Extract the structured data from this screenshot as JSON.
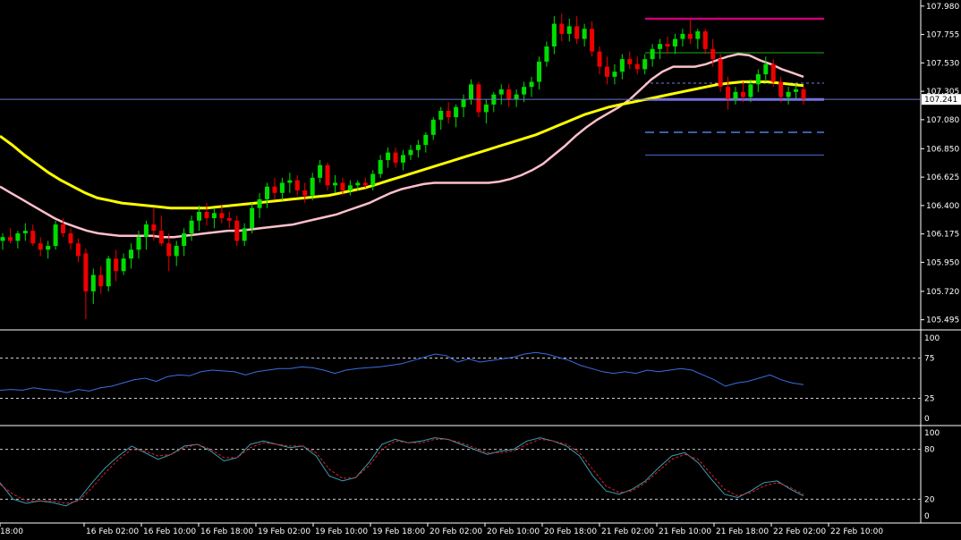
{
  "chart_data": [
    {
      "type": "candlestick",
      "panel": "price",
      "y_ticks": [
        "107.980",
        "107.755",
        "107.530",
        "107.305",
        "107.080",
        "106.850",
        "106.625",
        "106.400",
        "106.175",
        "105.950",
        "105.720",
        "105.495"
      ],
      "ylim": [
        105.45,
        108.0
      ],
      "current_price_label": "107.241",
      "current_price": 107.241,
      "candles": [
        [
          106.12,
          106.18,
          106.05,
          106.15
        ],
        [
          106.15,
          106.22,
          106.1,
          106.12
        ],
        [
          106.12,
          106.2,
          106.06,
          106.18
        ],
        [
          106.18,
          106.26,
          106.12,
          106.2
        ],
        [
          106.2,
          106.25,
          106.08,
          106.1
        ],
        [
          106.1,
          106.15,
          106.0,
          106.05
        ],
        [
          106.05,
          106.12,
          105.98,
          106.08
        ],
        [
          106.08,
          106.28,
          106.05,
          106.25
        ],
        [
          106.25,
          106.3,
          106.15,
          106.18
        ],
        [
          106.18,
          106.22,
          106.05,
          106.1
        ],
        [
          106.1,
          106.14,
          105.95,
          106.0
        ],
        [
          106.02,
          106.06,
          105.5,
          105.72
        ],
        [
          105.72,
          105.9,
          105.62,
          105.85
        ],
        [
          105.85,
          105.92,
          105.7,
          105.76
        ],
        [
          105.76,
          106.0,
          105.72,
          105.98
        ],
        [
          105.98,
          106.05,
          105.8,
          105.88
        ],
        [
          105.88,
          106.02,
          105.85,
          105.98
        ],
        [
          105.98,
          106.1,
          105.9,
          106.05
        ],
        [
          106.05,
          106.2,
          105.98,
          106.15
        ],
        [
          106.15,
          106.28,
          106.05,
          106.25
        ],
        [
          106.25,
          106.38,
          106.12,
          106.2
        ],
        [
          106.2,
          106.32,
          106.08,
          106.1
        ],
        [
          106.1,
          106.18,
          105.88,
          106.0
        ],
        [
          106.0,
          106.12,
          105.92,
          106.08
        ],
        [
          106.08,
          106.22,
          106.0,
          106.18
        ],
        [
          106.18,
          106.32,
          106.12,
          106.28
        ],
        [
          106.28,
          106.4,
          106.2,
          106.35
        ],
        [
          106.35,
          106.42,
          106.24,
          106.3
        ],
        [
          106.3,
          106.38,
          106.22,
          106.34
        ],
        [
          106.34,
          106.4,
          106.26,
          106.3
        ],
        [
          106.3,
          106.35,
          106.22,
          106.28
        ],
        [
          106.28,
          106.32,
          106.08,
          106.12
        ],
        [
          106.12,
          106.26,
          106.08,
          106.22
        ],
        [
          106.22,
          106.42,
          106.18,
          106.38
        ],
        [
          106.38,
          106.5,
          106.3,
          106.45
        ],
        [
          106.45,
          106.58,
          106.38,
          106.55
        ],
        [
          106.55,
          106.62,
          106.45,
          106.5
        ],
        [
          106.5,
          106.62,
          106.44,
          106.58
        ],
        [
          106.58,
          106.66,
          106.5,
          106.6
        ],
        [
          106.6,
          106.64,
          106.48,
          106.52
        ],
        [
          106.52,
          106.58,
          106.42,
          106.48
        ],
        [
          106.48,
          106.66,
          106.44,
          106.62
        ],
        [
          106.62,
          106.76,
          106.58,
          106.72
        ],
        [
          106.72,
          106.74,
          106.52,
          106.56
        ],
        [
          106.56,
          106.64,
          106.5,
          106.58
        ],
        [
          106.58,
          106.62,
          106.48,
          106.52
        ],
        [
          106.52,
          106.6,
          106.48,
          106.56
        ],
        [
          106.56,
          106.6,
          106.52,
          106.58
        ],
        [
          106.58,
          106.62,
          106.54,
          106.56
        ],
        [
          106.56,
          106.68,
          106.52,
          106.65
        ],
        [
          106.65,
          106.8,
          106.62,
          106.76
        ],
        [
          106.76,
          106.86,
          106.7,
          106.82
        ],
        [
          106.82,
          106.86,
          106.7,
          106.74
        ],
        [
          106.74,
          106.84,
          106.68,
          106.8
        ],
        [
          106.8,
          106.88,
          106.76,
          106.84
        ],
        [
          106.84,
          106.92,
          106.78,
          106.88
        ],
        [
          106.88,
          106.98,
          106.82,
          106.96
        ],
        [
          106.96,
          107.1,
          106.92,
          107.08
        ],
        [
          107.08,
          107.18,
          107.0,
          107.15
        ],
        [
          107.15,
          107.22,
          107.05,
          107.1
        ],
        [
          107.1,
          107.2,
          107.02,
          107.18
        ],
        [
          107.18,
          107.28,
          107.1,
          107.24
        ],
        [
          107.24,
          107.4,
          107.2,
          107.36
        ],
        [
          107.36,
          107.38,
          107.1,
          107.14
        ],
        [
          107.14,
          107.24,
          107.05,
          107.2
        ],
        [
          107.2,
          107.3,
          107.14,
          107.28
        ],
        [
          107.28,
          107.36,
          107.2,
          107.32
        ],
        [
          107.32,
          107.36,
          107.18,
          107.24
        ],
        [
          107.24,
          107.32,
          107.18,
          107.28
        ],
        [
          107.28,
          107.38,
          107.22,
          107.34
        ],
        [
          107.34,
          107.42,
          107.26,
          107.38
        ],
        [
          107.38,
          107.58,
          107.32,
          107.54
        ],
        [
          107.54,
          107.7,
          107.5,
          107.66
        ],
        [
          107.66,
          107.9,
          107.6,
          107.84
        ],
        [
          107.84,
          107.92,
          107.7,
          107.76
        ],
        [
          107.76,
          107.88,
          107.7,
          107.82
        ],
        [
          107.82,
          107.9,
          107.68,
          107.72
        ],
        [
          107.72,
          107.84,
          107.66,
          107.8
        ],
        [
          107.8,
          107.86,
          107.58,
          107.62
        ],
        [
          107.62,
          107.66,
          107.44,
          107.5
        ],
        [
          107.5,
          107.58,
          107.36,
          107.42
        ],
        [
          107.42,
          107.52,
          107.36,
          107.46
        ],
        [
          107.46,
          107.6,
          107.4,
          107.56
        ],
        [
          107.56,
          107.62,
          107.48,
          107.52
        ],
        [
          107.52,
          107.58,
          107.44,
          107.48
        ],
        [
          107.48,
          107.6,
          107.44,
          107.56
        ],
        [
          107.56,
          107.68,
          107.5,
          107.64
        ],
        [
          107.64,
          107.72,
          107.56,
          107.68
        ],
        [
          107.68,
          107.74,
          107.6,
          107.66
        ],
        [
          107.66,
          107.76,
          107.6,
          107.72
        ],
        [
          107.72,
          107.8,
          107.66,
          107.76
        ],
        [
          107.76,
          107.88,
          107.68,
          107.72
        ],
        [
          107.72,
          107.8,
          107.64,
          107.78
        ],
        [
          107.78,
          107.8,
          107.6,
          107.64
        ],
        [
          107.64,
          107.72,
          107.5,
          107.56
        ],
        [
          107.56,
          107.6,
          107.3,
          107.34
        ],
        [
          107.34,
          107.42,
          107.16,
          107.24
        ],
        [
          107.24,
          107.34,
          107.2,
          107.3
        ],
        [
          107.3,
          107.38,
          107.22,
          107.26
        ],
        [
          107.26,
          107.4,
          107.22,
          107.36
        ],
        [
          107.36,
          107.48,
          107.3,
          107.44
        ],
        [
          107.44,
          107.58,
          107.38,
          107.52
        ],
        [
          107.52,
          107.56,
          107.34,
          107.38
        ],
        [
          107.38,
          107.42,
          107.22,
          107.26
        ],
        [
          107.26,
          107.34,
          107.2,
          107.3
        ],
        [
          107.3,
          107.36,
          107.24,
          107.32
        ],
        [
          107.32,
          107.34,
          107.2,
          107.24
        ]
      ],
      "series": [
        {
          "color": "#ffc0cb",
          "values": [
            106.55,
            106.5,
            106.45,
            106.4,
            106.35,
            106.3,
            106.26,
            106.23,
            106.2,
            106.18,
            106.17,
            106.16,
            106.16,
            106.16,
            106.16,
            106.15,
            106.15,
            106.16,
            106.17,
            106.18,
            106.19,
            106.2,
            106.2,
            106.21,
            106.22,
            106.23,
            106.24,
            106.25,
            106.27,
            106.29,
            106.31,
            106.33,
            106.36,
            106.39,
            106.42,
            106.46,
            106.5,
            106.53,
            106.55,
            106.57,
            106.58,
            106.58,
            106.58,
            106.58,
            106.58,
            106.58,
            106.59,
            106.61,
            106.64,
            106.68,
            106.73,
            106.8,
            106.87,
            106.95,
            107.02,
            107.08,
            107.13,
            107.18,
            107.24,
            107.32,
            107.4,
            107.46,
            107.5,
            107.5,
            107.5,
            107.52,
            107.55,
            107.58,
            107.6,
            107.59,
            107.55,
            107.52,
            107.48,
            107.45,
            107.42
          ]
        },
        {
          "color": "#ffff00",
          "values": [
            106.95,
            106.88,
            106.8,
            106.73,
            106.66,
            106.6,
            106.55,
            106.5,
            106.46,
            106.44,
            106.42,
            106.41,
            106.4,
            106.39,
            106.38,
            106.38,
            106.38,
            106.38,
            106.39,
            106.4,
            106.41,
            106.42,
            106.43,
            106.44,
            106.45,
            106.46,
            106.47,
            106.48,
            106.5,
            106.52,
            106.54,
            106.57,
            106.6,
            106.63,
            106.66,
            106.69,
            106.72,
            106.75,
            106.78,
            106.81,
            106.84,
            106.87,
            106.9,
            106.93,
            106.96,
            107.0,
            107.04,
            107.08,
            107.12,
            107.15,
            107.18,
            107.2,
            107.22,
            107.24,
            107.26,
            107.28,
            107.3,
            107.32,
            107.34,
            107.36,
            107.37,
            107.38,
            107.38,
            107.38,
            107.37,
            107.36,
            107.35
          ]
        }
      ],
      "levels": [
        {
          "value": 107.88,
          "color": "#cc0077",
          "style": "solid"
        },
        {
          "value": 107.61,
          "color": "#22aa22",
          "style": "solid"
        },
        {
          "value": 107.37,
          "color": "#6f7ed8",
          "style": "dotted"
        },
        {
          "value": 107.24,
          "color": "#7c6cf0",
          "style": "thick"
        },
        {
          "value": 106.98,
          "color": "#4d7ee0",
          "style": "dashed"
        },
        {
          "value": 106.8,
          "color": "#4d6ad8",
          "style": "solid"
        }
      ]
    },
    {
      "type": "line",
      "panel": "rsi",
      "y_ticks": [
        "100",
        "75",
        "25",
        "0"
      ],
      "ylim": [
        0,
        100
      ],
      "levels": [
        75,
        25
      ],
      "series": [
        {
          "color": "#3a6fe0",
          "values": [
            35,
            36,
            35,
            38,
            36,
            35,
            32,
            36,
            34,
            38,
            40,
            44,
            48,
            50,
            46,
            52,
            54,
            53,
            58,
            60,
            59,
            58,
            54,
            58,
            60,
            62,
            62,
            64,
            63,
            60,
            56,
            60,
            62,
            63,
            64,
            66,
            68,
            72,
            76,
            80,
            78,
            70,
            74,
            70,
            72,
            74,
            76,
            80,
            82,
            80,
            76,
            72,
            66,
            62,
            58,
            56,
            58,
            56,
            60,
            58,
            60,
            62,
            60,
            54,
            48,
            40,
            44,
            46,
            50,
            54,
            48,
            44,
            42
          ]
        }
      ]
    },
    {
      "type": "line",
      "panel": "stochastic",
      "y_ticks": [
        "100",
        "80",
        "20",
        "0"
      ],
      "ylim": [
        0,
        100
      ],
      "levels": [
        80,
        20
      ],
      "series": [
        {
          "color": "#3a9fb5",
          "values": [
            40,
            20,
            15,
            18,
            16,
            12,
            20,
            40,
            58,
            72,
            84,
            76,
            68,
            74,
            84,
            86,
            78,
            66,
            70,
            86,
            90,
            86,
            82,
            84,
            72,
            48,
            42,
            46,
            64,
            86,
            92,
            88,
            90,
            94,
            92,
            86,
            80,
            74,
            78,
            80,
            90,
            94,
            90,
            84,
            72,
            48,
            30,
            26,
            32,
            42,
            58,
            72,
            76,
            64,
            44,
            26,
            22,
            30,
            40,
            42,
            32,
            24
          ]
        },
        {
          "color": "#dd2222",
          "values": [
            38,
            26,
            18,
            18,
            18,
            15,
            18,
            34,
            52,
            68,
            80,
            78,
            72,
            74,
            82,
            86,
            80,
            70,
            70,
            82,
            88,
            86,
            84,
            84,
            76,
            56,
            45,
            46,
            60,
            80,
            90,
            88,
            88,
            92,
            92,
            88,
            82,
            76,
            76,
            78,
            86,
            92,
            90,
            86,
            76,
            56,
            36,
            28,
            30,
            40,
            54,
            68,
            74,
            68,
            50,
            32,
            24,
            28,
            36,
            40,
            34,
            26
          ]
        }
      ]
    },
    {
      "type": "time_axis",
      "x_labels": [
        "18:00",
        "16 Feb 02:00",
        "16 Feb 10:00",
        "16 Feb 18:00",
        "19 Feb 02:00",
        "19 Feb 10:00",
        "19 Feb 18:00",
        "20 Feb 02:00",
        "20 Feb 10:00",
        "20 Feb 18:00",
        "21 Feb 02:00",
        "21 Feb 10:00",
        "21 Feb 18:00",
        "22 Feb 02:00",
        "22 Feb 10:00"
      ]
    }
  ]
}
